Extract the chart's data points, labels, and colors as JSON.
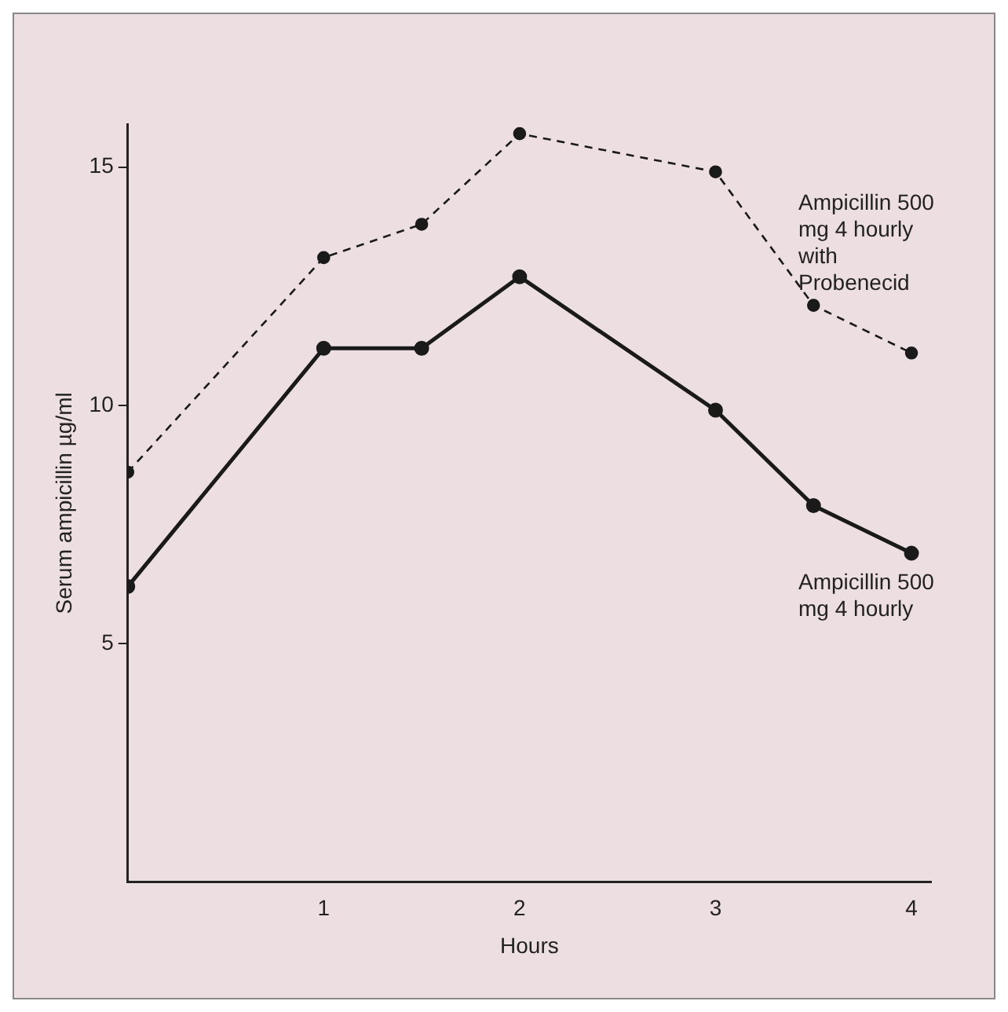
{
  "chart_data": {
    "type": "line",
    "xlabel": "Hours",
    "ylabel": "Serum ampicillin µg/ml",
    "x": [
      0,
      1,
      1.5,
      2,
      3,
      3.5,
      4
    ],
    "series": [
      {
        "name": "Ampicillin 500 mg 4 hourly with Probenecid",
        "color": "#1a1a1a",
        "line_style": "dashed",
        "values": [
          8.6,
          13.1,
          13.8,
          15.7,
          14.9,
          12.1,
          11.1
        ]
      },
      {
        "name": "Ampicillin 500 mg 4 hourly",
        "color": "#1a1a1a",
        "line_style": "solid",
        "values": [
          6.2,
          11.2,
          11.2,
          12.7,
          9.9,
          7.9,
          6.9
        ]
      }
    ],
    "xlim": [
      0,
      4.1
    ],
    "ylim": [
      0,
      15.9
    ],
    "xticks": [
      1,
      2,
      3,
      4
    ],
    "yticks": [
      5,
      10,
      15
    ],
    "marker": "circle",
    "grid": false,
    "legend": false
  }
}
